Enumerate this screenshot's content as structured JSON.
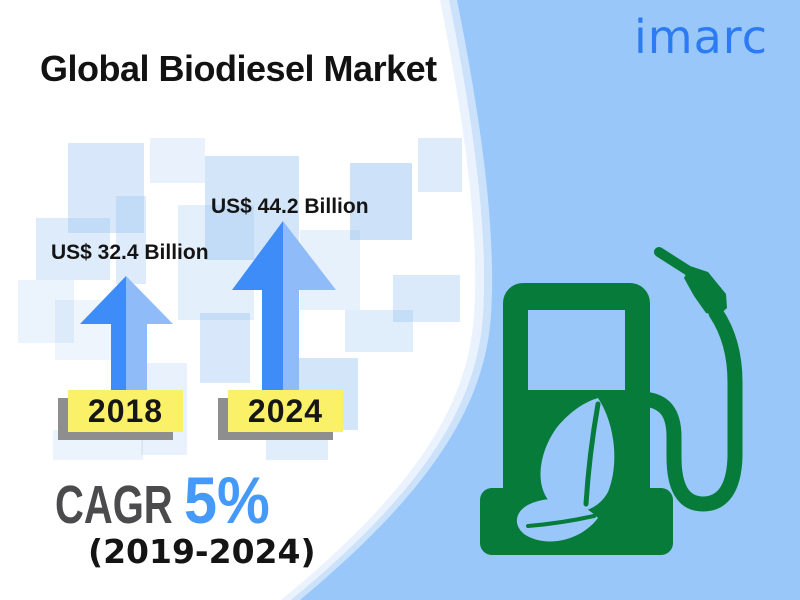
{
  "header": {
    "title": "Global Biodiesel Market"
  },
  "logo": {
    "brand": "imarc"
  },
  "chart_data": {
    "type": "bar",
    "title": "Global Biodiesel Market",
    "categories": [
      "2018",
      "2024"
    ],
    "values": [
      32.4,
      44.2
    ],
    "unit": "US$ Billion",
    "value_labels": [
      "US$ 32.4 Billion",
      "US$ 44.2 Billion"
    ],
    "annotation": "CAGR 5% (2019-2024)",
    "legend_position": "none",
    "grid": false
  },
  "cagr": {
    "label": "CAGR",
    "value": "5%",
    "period": "(2019-2024)"
  },
  "icons": {
    "pump": "biodiesel-fuel-pump-icon",
    "leaf": "leaf-icon"
  },
  "colors": {
    "panel_blue": "#9AC7FA",
    "panel_rim_mid": "#CCE1FA",
    "panel_rim_outer": "#EAF3FD",
    "arrow_dark": "#3E8CF7",
    "arrow_light": "#8FBCF8",
    "year_box_bg": "#FAF169",
    "year_box_text": "#161616",
    "pump_green": "#067B3A",
    "leaf_blue": "#9AC7FA",
    "cagr_value_blue": "#4599F8",
    "cagr_label_gray": "#4B4B4D",
    "logo_blue": "#2B7BF3",
    "title_black": "#121212"
  }
}
